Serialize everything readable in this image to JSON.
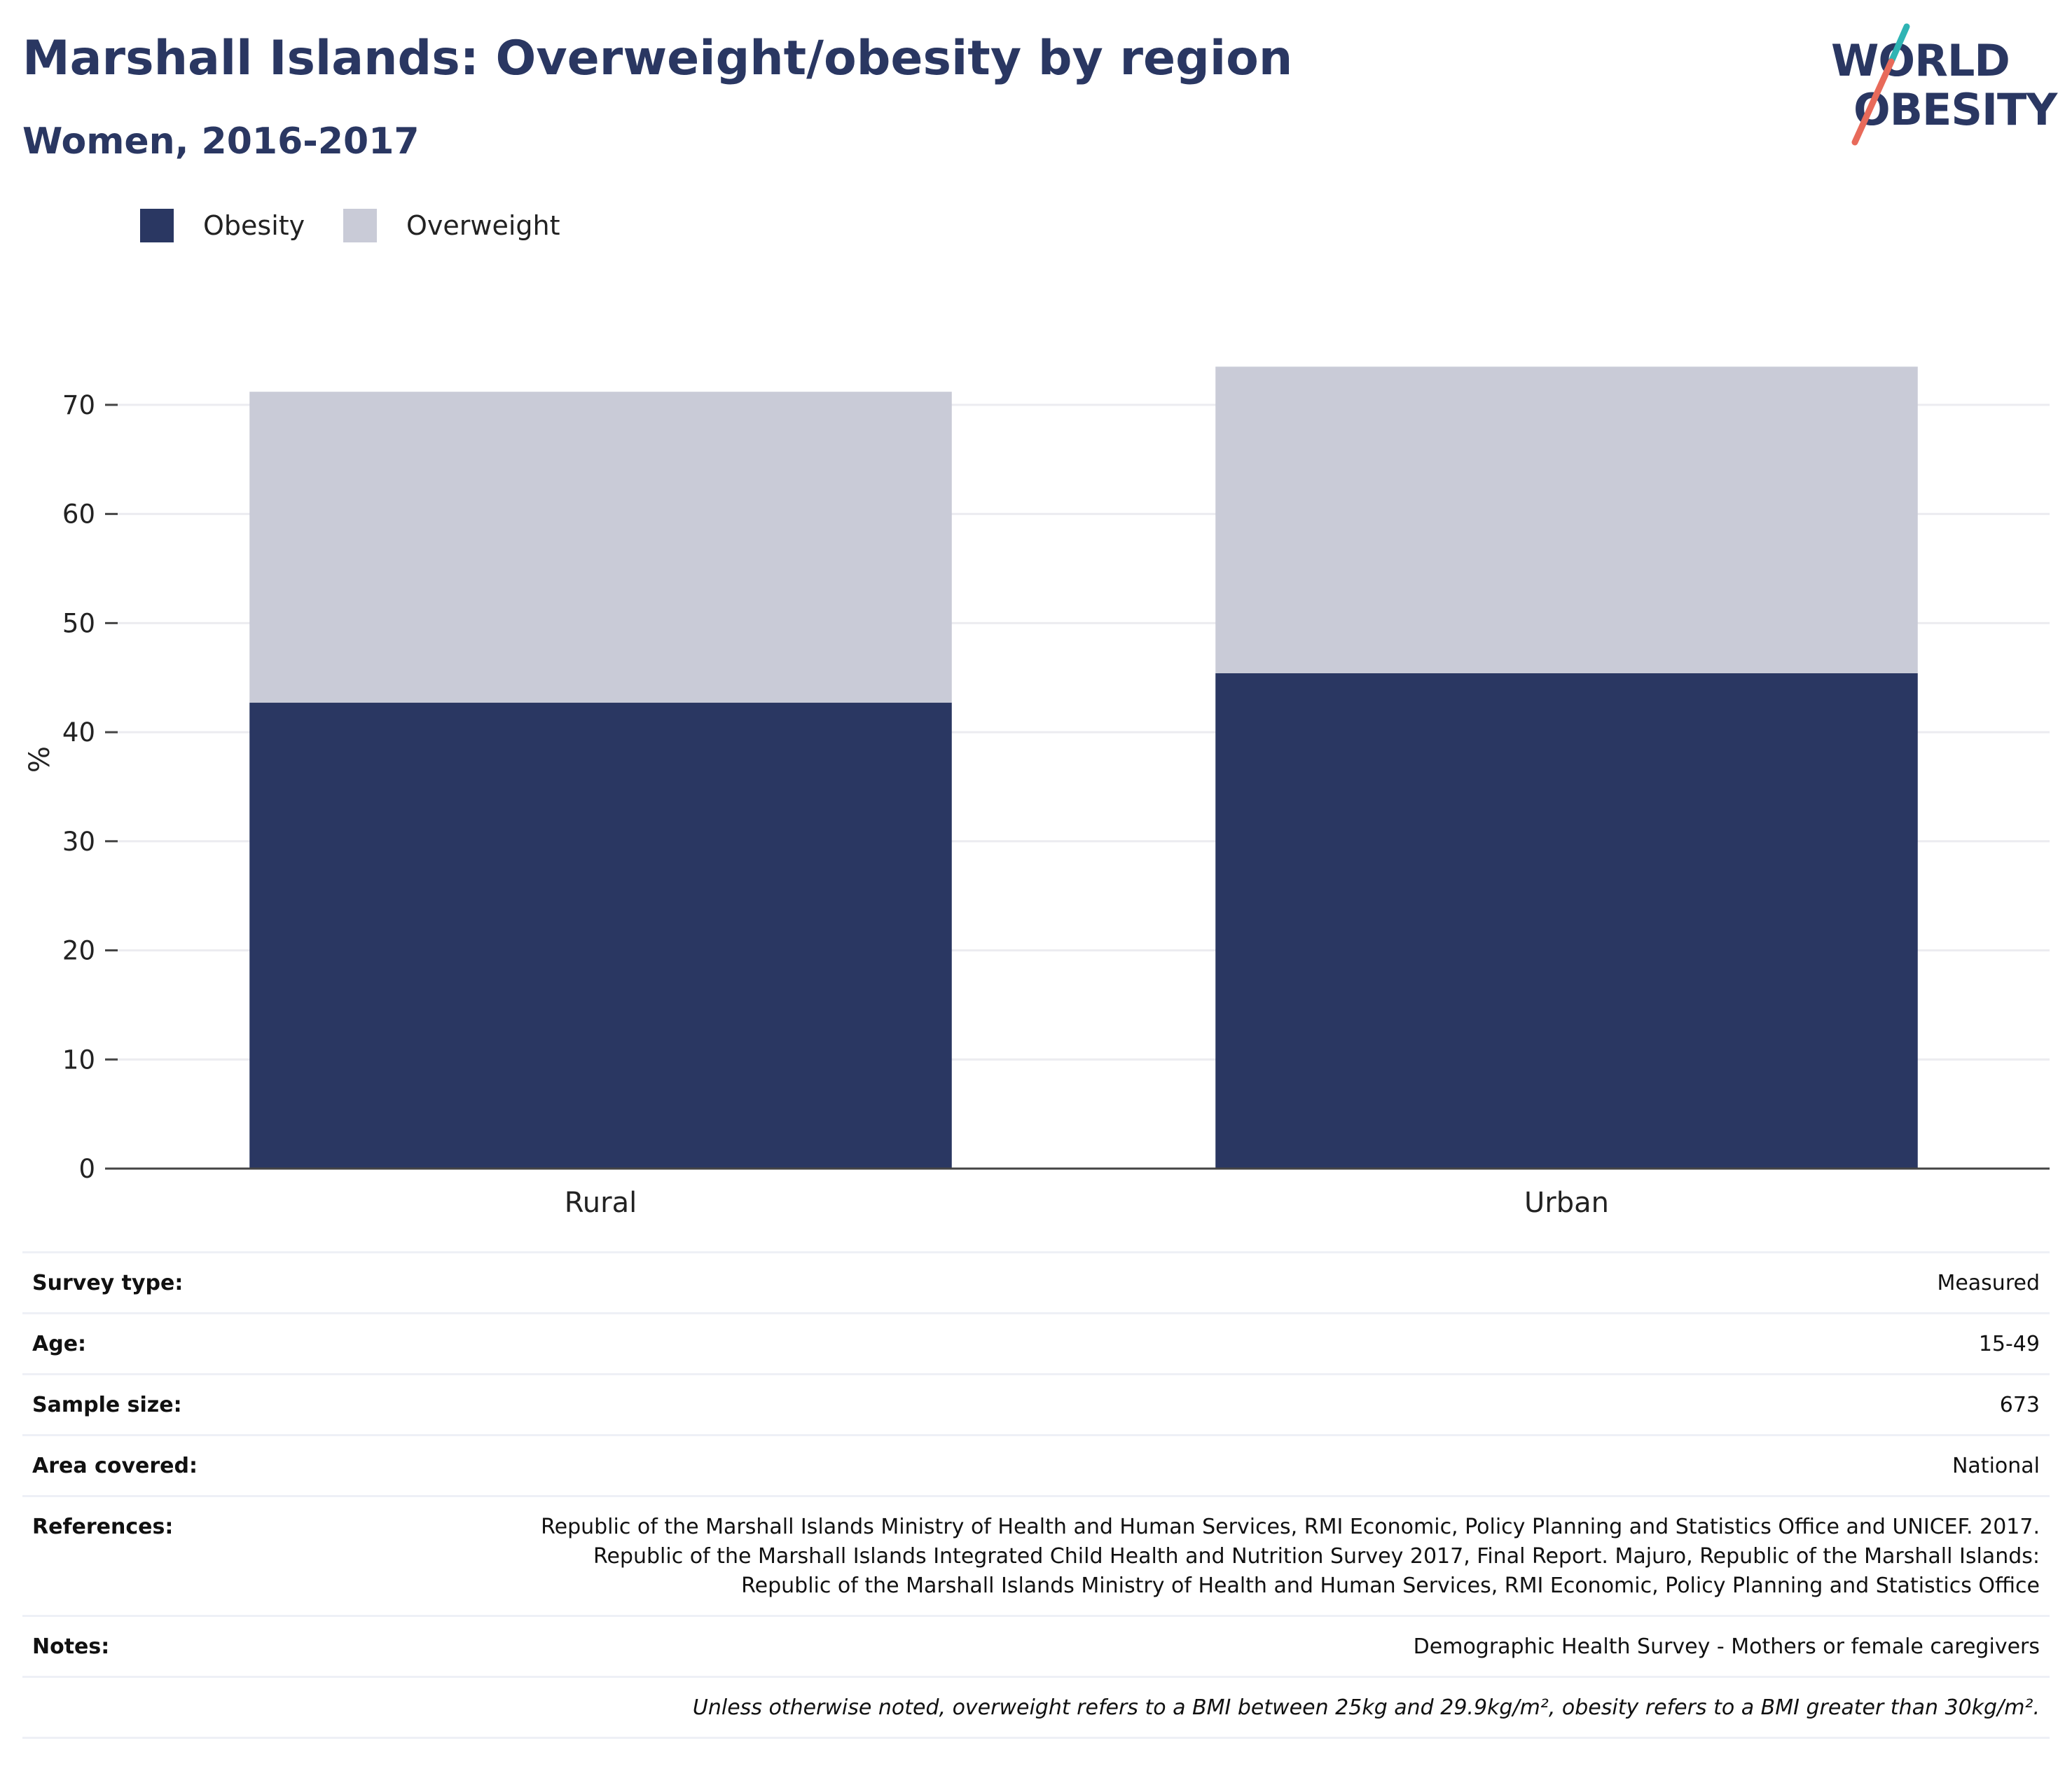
{
  "header": {
    "title": "Marshall Islands: Overweight/obesity by region",
    "subtitle": "Women, 2016-2017"
  },
  "logo": {
    "line1": "WORLD",
    "line2": "OBESITY",
    "colors": {
      "text": "#2a3762",
      "slash_top": "#2fb4b4",
      "slash_bottom": "#e86a5a"
    }
  },
  "legend": {
    "items": [
      {
        "label": "Obesity",
        "color": "#2a3762"
      },
      {
        "label": "Overweight",
        "color": "#c9cbd7"
      }
    ]
  },
  "chart_data": {
    "type": "bar",
    "stacked": true,
    "categories": [
      "Rural",
      "Urban"
    ],
    "series": [
      {
        "name": "Obesity",
        "values": [
          42.7,
          45.4
        ],
        "color": "#2a3762"
      },
      {
        "name": "Overweight",
        "values": [
          28.5,
          28.1
        ],
        "color": "#c9cbd7"
      }
    ],
    "title": "Marshall Islands: Overweight/obesity by region",
    "subtitle": "Women, 2016-2017",
    "xlabel": "",
    "ylabel": "%",
    "ylim": [
      0,
      75
    ],
    "yticks": [
      0,
      10,
      20,
      30,
      40,
      50,
      60,
      70
    ],
    "grid": true,
    "legend_position": "top-left"
  },
  "info": {
    "rows": [
      {
        "label": "Survey type:",
        "value": "Measured"
      },
      {
        "label": "Age:",
        "value": "15-49"
      },
      {
        "label": "Sample size:",
        "value": "673"
      },
      {
        "label": "Area covered:",
        "value": "National"
      },
      {
        "label": "References:",
        "value": "Republic of the Marshall Islands Ministry of Health and Human Services, RMI Economic, Policy Planning and Statistics Office and UNICEF. 2017. Republic of the Marshall Islands Integrated Child Health and Nutrition Survey 2017, Final Report. Majuro, Republic of the Marshall Islands: Republic of the Marshall Islands Ministry of Health and Human Services, RMI Economic, Policy Planning and Statistics Office"
      },
      {
        "label": "Notes:",
        "value": "Demographic Health Survey - Mothers or female caregivers"
      }
    ],
    "footnote": "Unless otherwise noted, overweight refers to a BMI between 25kg and 29.9kg/m², obesity refers to a BMI greater than 30kg/m²."
  }
}
